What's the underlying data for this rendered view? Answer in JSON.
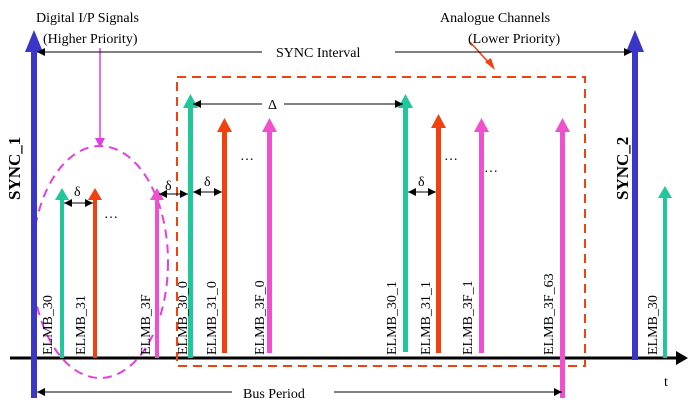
{
  "colors": {
    "sync": "#3a36c8",
    "green": "#1fc79a",
    "red": "#f2410f",
    "magenta": "#f050d0",
    "dashed_red": "#f2410f",
    "dashed_magenta": "#e040e0",
    "axis": "#000000"
  },
  "annotations": {
    "digital_line1": "Digital I/P Signals",
    "digital_line2": "(Higher Priority)",
    "analogue_line1": "Analogue Channels",
    "analogue_line2": "(Lower Priority)",
    "sync_interval": "SYNC Interval",
    "bus_period": "Bus Period",
    "t_axis": "t",
    "delta_big": "Δ",
    "delta_small": "δ",
    "ellipsis": "…"
  },
  "sync_labels": {
    "sync1": "SYNC_1",
    "sync2": "SYNC_2"
  },
  "elmb_labels": {
    "d30": "ELMB_30",
    "d31": "ELMB_31",
    "d3f": "ELMB_3F",
    "a30_0": "ELMB_30_0",
    "a31_0": "ELMB_31_0",
    "a3f_0": "ELMB_3F_0",
    "a30_1": "ELMB_30_1",
    "a31_1": "ELMB_31_1",
    "a3f_1": "ELMB_3F_1",
    "a3f_63": "ELMB_3F_63",
    "e30": "ELMB_30"
  }
}
